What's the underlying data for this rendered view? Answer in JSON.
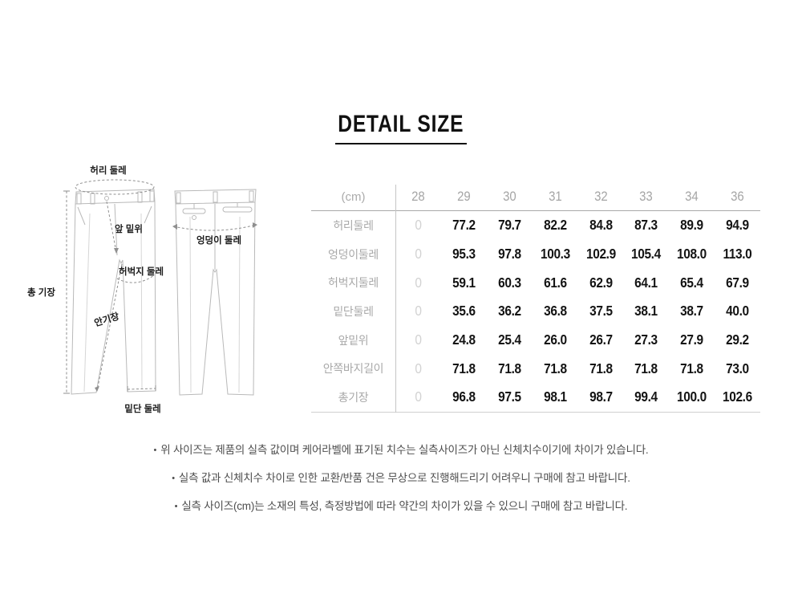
{
  "title": "DETAIL SIZE",
  "bullet": "•",
  "diagram": {
    "labels": {
      "waist": "허리 둘레",
      "front_rise": "앞 밑위",
      "thigh": "허벅지 둘레",
      "total_length": "총 기장",
      "inseam": "안기장",
      "hem": "밑단 둘레",
      "hip": "엉덩이 둘레"
    }
  },
  "table": {
    "unit_header": "(cm)",
    "size_headers": [
      "28",
      "29",
      "30",
      "31",
      "32",
      "33",
      "34",
      "36"
    ],
    "rows": [
      {
        "label": "허리둘레",
        "values": [
          "0",
          "77.2",
          "79.7",
          "82.2",
          "84.8",
          "87.3",
          "89.9",
          "94.9"
        ]
      },
      {
        "label": "엉덩이둘레",
        "values": [
          "0",
          "95.3",
          "97.8",
          "100.3",
          "102.9",
          "105.4",
          "108.0",
          "113.0"
        ]
      },
      {
        "label": "허벅지둘레",
        "values": [
          "0",
          "59.1",
          "60.3",
          "61.6",
          "62.9",
          "64.1",
          "65.4",
          "67.9"
        ]
      },
      {
        "label": "밑단둘레",
        "values": [
          "0",
          "35.6",
          "36.2",
          "36.8",
          "37.5",
          "38.1",
          "38.7",
          "40.0"
        ]
      },
      {
        "label": "앞밑위",
        "values": [
          "0",
          "24.8",
          "25.4",
          "26.0",
          "26.7",
          "27.3",
          "27.9",
          "29.2"
        ]
      },
      {
        "label": "안쪽바지길이",
        "values": [
          "0",
          "71.8",
          "71.8",
          "71.8",
          "71.8",
          "71.8",
          "71.8",
          "73.0"
        ]
      },
      {
        "label": "총기장",
        "values": [
          "0",
          "96.8",
          "97.5",
          "98.1",
          "98.7",
          "99.4",
          "100.0",
          "102.6"
        ]
      }
    ]
  },
  "notes": [
    "위 사이즈는 제품의 실측 값이며 케어라벨에 표기된 치수는 실측사이즈가 아닌 신체치수이기에 차이가 있습니다.",
    "실측 값과 신체치수 차이로 인한 교환/반품 건은 무상으로 진행해드리기 어려우니 구매에 참고 바랍니다.",
    "실측 사이즈(cm)는 소재의 특성, 측정방법에 따라 약간의 차이가 있을 수 있으니 구매에 참고 바랍니다."
  ],
  "colors": {
    "text_primary": "#141414",
    "text_muted": "#a9a9a9",
    "zero_column": "#d2d2d2",
    "line_gray": "#b9b9b9",
    "note_text": "#4d4d4d"
  }
}
